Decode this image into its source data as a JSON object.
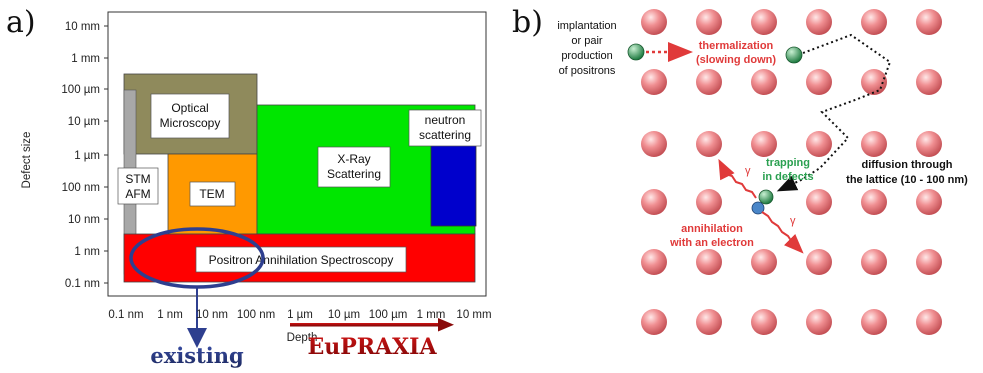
{
  "panel_a": {
    "label": "a)",
    "y_axis_label": "Defect size",
    "x_axis_label": "Depth",
    "y_ticks": [
      "10 mm",
      "1 mm",
      "100 µm",
      "10 µm",
      "1 µm",
      "100 nm",
      "10 nm",
      "1 nm",
      "0.1 nm"
    ],
    "x_ticks": [
      "0.1 nm",
      "1 nm",
      "10 nm",
      "100 nm",
      "1 µm",
      "10 µm",
      "100 µm",
      "1 mm",
      "10 mm"
    ],
    "regions": {
      "optical": [
        "Optical",
        "Microscopy"
      ],
      "stm": [
        "STM",
        "AFM"
      ],
      "tem": "TEM",
      "xray": [
        "X-Ray",
        "Scattering"
      ],
      "neutron": [
        "neutron",
        "scattering"
      ],
      "pas": "Positron Annihilation Spectroscopy"
    },
    "existing_label": "existing",
    "eupraxia_label": "EuPRAXIA",
    "colors": {
      "optical": "#8f8a5c",
      "stm": "#a8a8a8",
      "tem": "#ff9900",
      "xray": "#00e600",
      "neutron": "#0000cc",
      "pas": "#ff0000",
      "existing": "#2e3f8f",
      "eupraxia": "#b01010"
    }
  },
  "panel_b": {
    "label": "b)",
    "implantation": [
      "implantation",
      "or pair",
      "production",
      "of positrons"
    ],
    "thermalization": [
      "thermalization",
      "(slowing down)"
    ],
    "trapping": [
      "trapping",
      "in defects"
    ],
    "diffusion": [
      "diffusion through",
      "the lattice (10 - 100 nm)"
    ],
    "annihilation": [
      "annihilation",
      "with an electron"
    ],
    "gamma": "γ",
    "positron": "e+",
    "electron": "e-",
    "colors": {
      "atom": "#e8878a",
      "positron": "#2e9e5a",
      "thermal": "#e03a3a",
      "trap": "#2aa050",
      "diffusion": "#111111"
    }
  }
}
